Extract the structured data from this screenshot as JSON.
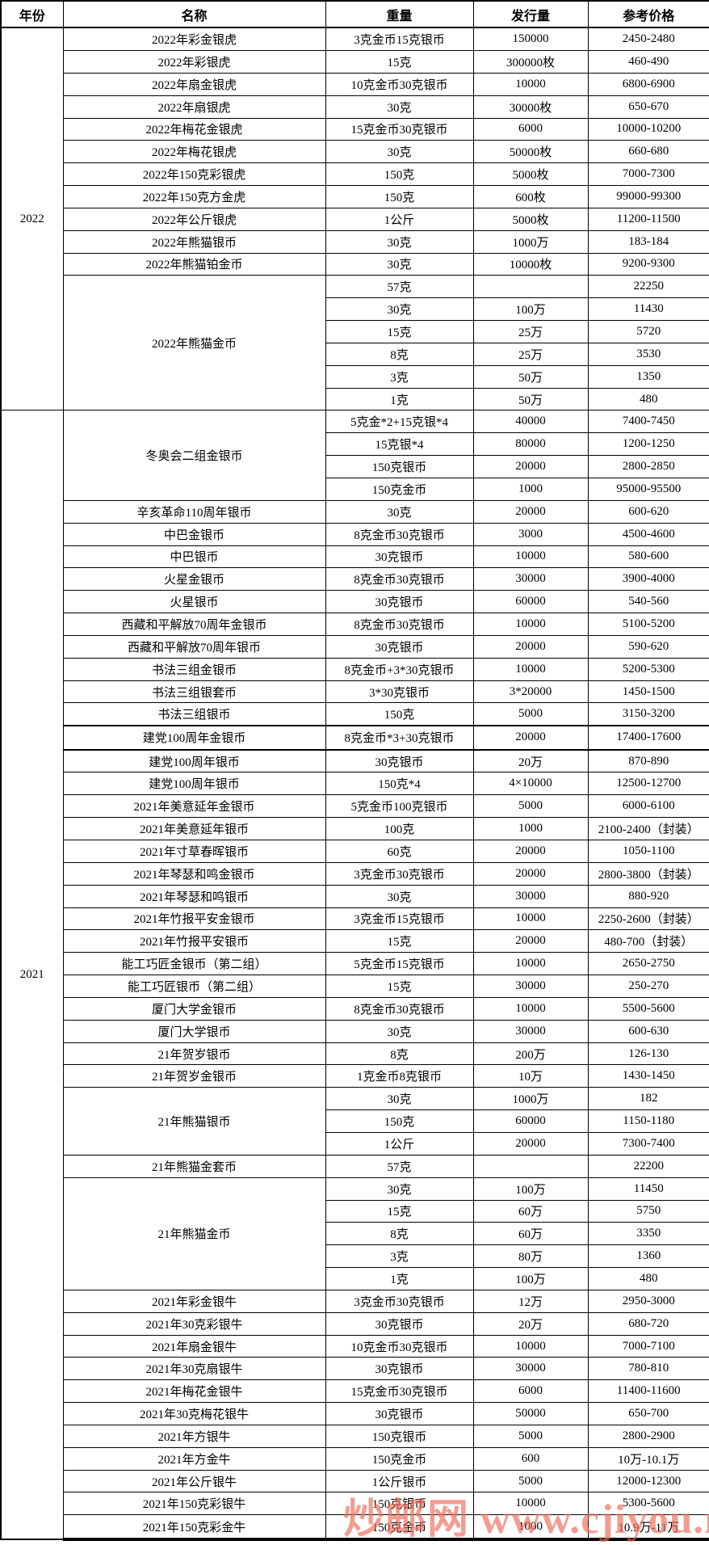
{
  "table": {
    "columns": [
      "年份",
      "名称",
      "重量",
      "发行量",
      "参考价格"
    ],
    "sections": [
      {
        "year": "2022",
        "groups": [
          {
            "name": "2022年彩金银虎",
            "rows": [
              {
                "weight": "3克金币15克银币",
                "issue": "150000",
                "price": "2450-2480"
              }
            ]
          },
          {
            "name": "2022年彩银虎",
            "rows": [
              {
                "weight": "15克",
                "issue": "300000枚",
                "price": "460-490"
              }
            ]
          },
          {
            "name": "2022年扇金银虎",
            "rows": [
              {
                "weight": "10克金币30克银币",
                "issue": "10000",
                "price": "6800-6900"
              }
            ]
          },
          {
            "name": "2022年扇银虎",
            "rows": [
              {
                "weight": "30克",
                "issue": "30000枚",
                "price": "650-670"
              }
            ]
          },
          {
            "name": "2022年梅花金银虎",
            "rows": [
              {
                "weight": "15克金币30克银币",
                "issue": "6000",
                "price": "10000-10200"
              }
            ]
          },
          {
            "name": "2022年梅花银虎",
            "rows": [
              {
                "weight": "30克",
                "issue": "50000枚",
                "price": "660-680"
              }
            ]
          },
          {
            "name": "2022年150克彩银虎",
            "rows": [
              {
                "weight": "150克",
                "issue": "5000枚",
                "price": "7000-7300"
              }
            ]
          },
          {
            "name": "2022年150克方金虎",
            "rows": [
              {
                "weight": "150克",
                "issue": "600枚",
                "price": "99000-99300"
              }
            ]
          },
          {
            "name": "2022年公斤银虎",
            "rows": [
              {
                "weight": "1公斤",
                "issue": "5000枚",
                "price": "11200-11500"
              }
            ]
          },
          {
            "name": "2022年熊猫银币",
            "rows": [
              {
                "weight": "30克",
                "issue": "1000万",
                "price": "183-184"
              }
            ]
          },
          {
            "name": "2022年熊猫铂金币",
            "rows": [
              {
                "weight": "30克",
                "issue": "10000枚",
                "price": "9200-9300"
              }
            ]
          },
          {
            "name": "2022年熊猫金币",
            "rows": [
              {
                "weight": "57克",
                "issue": "",
                "price": "22250"
              },
              {
                "weight": "30克",
                "issue": "100万",
                "price": "11430"
              },
              {
                "weight": "15克",
                "issue": "25万",
                "price": "5720"
              },
              {
                "weight": "8克",
                "issue": "25万",
                "price": "3530"
              },
              {
                "weight": "3克",
                "issue": "50万",
                "price": "1350"
              },
              {
                "weight": "1克",
                "issue": "50万",
                "price": "480"
              }
            ]
          }
        ]
      },
      {
        "year": "2021",
        "groups": [
          {
            "name": "冬奥会二组金银币",
            "rows": [
              {
                "weight": "5克金*2+15克银*4",
                "issue": "40000",
                "price": "7400-7450"
              },
              {
                "weight": "15克银*4",
                "issue": "80000",
                "price": "1200-1250"
              },
              {
                "weight": "150克银币",
                "issue": "20000",
                "price": "2800-2850"
              },
              {
                "weight": "150克金币",
                "issue": "1000",
                "price": "95000-95500"
              }
            ]
          },
          {
            "name": "辛亥革命110周年银币",
            "rows": [
              {
                "weight": "30克",
                "issue": "20000",
                "price": "600-620"
              }
            ]
          },
          {
            "name": "中巴金银币",
            "rows": [
              {
                "weight": "8克金币30克银币",
                "issue": "3000",
                "price": "4500-4600"
              }
            ]
          },
          {
            "name": "中巴银币",
            "rows": [
              {
                "weight": "30克银币",
                "issue": "10000",
                "price": "580-600"
              }
            ]
          },
          {
            "name": "火星金银币",
            "rows": [
              {
                "weight": "8克金币30克银币",
                "issue": "30000",
                "price": "3900-4000"
              }
            ]
          },
          {
            "name": "火星银币",
            "rows": [
              {
                "weight": "30克银币",
                "issue": "60000",
                "price": "540-560"
              }
            ]
          },
          {
            "name": "西藏和平解放70周年金银币",
            "rows": [
              {
                "weight": "8克金币30克银币",
                "issue": "10000",
                "price": "5100-5200"
              }
            ]
          },
          {
            "name": "西藏和平解放70周年银币",
            "rows": [
              {
                "weight": "30克银币",
                "issue": "20000",
                "price": "590-620"
              }
            ]
          },
          {
            "name": "书法三组金银币",
            "rows": [
              {
                "weight": "8克金币+3*30克银币",
                "issue": "10000",
                "price": "5200-5300"
              }
            ]
          },
          {
            "name": "书法三组银套币",
            "rows": [
              {
                "weight": "3*30克银币",
                "issue": "3*20000",
                "price": "1450-1500"
              }
            ]
          },
          {
            "name": "书法三组银币",
            "rows": [
              {
                "weight": "150克",
                "issue": "5000",
                "price": "3150-3200"
              }
            ]
          },
          {
            "name": "建党100周年金银币",
            "thick": true,
            "rows": [
              {
                "weight": "8克金币*3+30克银币",
                "issue": "20000",
                "price": "17400-17600"
              }
            ]
          },
          {
            "name": "建党100周年银币",
            "rows": [
              {
                "weight": "30克银币",
                "issue": "20万",
                "price": "870-890"
              }
            ]
          },
          {
            "name": "建党100周年银币",
            "rows": [
              {
                "weight": "150克*4",
                "issue": "4×10000",
                "price": "12500-12700"
              }
            ]
          },
          {
            "name": "2021年美意延年金银币",
            "rows": [
              {
                "weight": "5克金币100克银币",
                "issue": "5000",
                "price": "6000-6100"
              }
            ]
          },
          {
            "name": "2021年美意延年银币",
            "rows": [
              {
                "weight": "100克",
                "issue": "1000",
                "price": "2100-2400（封装）"
              }
            ]
          },
          {
            "name": "2021年寸草春晖银币",
            "rows": [
              {
                "weight": "60克",
                "issue": "20000",
                "price": "1050-1100"
              }
            ]
          },
          {
            "name": "2021年琴瑟和鸣金银币",
            "rows": [
              {
                "weight": "3克金币30克银币",
                "issue": "20000",
                "price": "2800-3800（封装）"
              }
            ]
          },
          {
            "name": "2021年琴瑟和鸣银币",
            "rows": [
              {
                "weight": "30克",
                "issue": "30000",
                "price": "880-920"
              }
            ]
          },
          {
            "name": "2021年竹报平安金银币",
            "rows": [
              {
                "weight": "3克金币15克银币",
                "issue": "10000",
                "price": "2250-2600（封装）"
              }
            ]
          },
          {
            "name": "2021年竹报平安银币",
            "rows": [
              {
                "weight": "15克",
                "issue": "20000",
                "price": "480-700（封装）"
              }
            ]
          },
          {
            "name": "能工巧匠金银币（第二组）",
            "rows": [
              {
                "weight": "5克金币15克银币",
                "issue": "10000",
                "price": "2650-2750"
              }
            ]
          },
          {
            "name": "能工巧匠银币（第二组）",
            "rows": [
              {
                "weight": "15克",
                "issue": "30000",
                "price": "250-270"
              }
            ]
          },
          {
            "name": "厦门大学金银币",
            "rows": [
              {
                "weight": "8克金币30克银币",
                "issue": "10000",
                "price": "5500-5600"
              }
            ]
          },
          {
            "name": "厦门大学银币",
            "rows": [
              {
                "weight": "30克",
                "issue": "30000",
                "price": "600-630"
              }
            ]
          },
          {
            "name": "21年贺岁银币",
            "rows": [
              {
                "weight": "8克",
                "issue": "200万",
                "price": "126-130"
              }
            ]
          },
          {
            "name": "21年贺岁金银币",
            "rows": [
              {
                "weight": "1克金币8克银币",
                "issue": "10万",
                "price": "1430-1450"
              }
            ]
          },
          {
            "name": "21年熊猫银币",
            "rows": [
              {
                "weight": "30克",
                "issue": "1000万",
                "price": "182"
              },
              {
                "weight": "150克",
                "issue": "60000",
                "price": "1150-1180"
              },
              {
                "weight": "1公斤",
                "issue": "20000",
                "price": "7300-7400"
              }
            ]
          },
          {
            "name": "21年熊猫金套币",
            "rows": [
              {
                "weight": "57克",
                "issue": "",
                "price": "22200"
              }
            ]
          },
          {
            "name": "21年熊猫金币",
            "rows": [
              {
                "weight": "30克",
                "issue": "100万",
                "price": "11450"
              },
              {
                "weight": "15克",
                "issue": "60万",
                "price": "5750"
              },
              {
                "weight": "8克",
                "issue": "60万",
                "price": "3350"
              },
              {
                "weight": "3克",
                "issue": "80万",
                "price": "1360"
              },
              {
                "weight": "1克",
                "issue": "100万",
                "price": "480"
              }
            ]
          },
          {
            "name": "2021年彩金银牛",
            "rows": [
              {
                "weight": "3克金币30克银币",
                "issue": "12万",
                "price": "2950-3000"
              }
            ]
          },
          {
            "name": "2021年30克彩银牛",
            "rows": [
              {
                "weight": "30克银币",
                "issue": "20万",
                "price": "680-720"
              }
            ]
          },
          {
            "name": "2021年扇金银牛",
            "rows": [
              {
                "weight": "10克金币30克银币",
                "issue": "10000",
                "price": "7000-7100"
              }
            ]
          },
          {
            "name": "2021年30克扇银牛",
            "rows": [
              {
                "weight": "30克银币",
                "issue": "30000",
                "price": "780-810"
              }
            ]
          },
          {
            "name": "2021年梅花金银牛",
            "rows": [
              {
                "weight": "15克金币30克银币",
                "issue": "6000",
                "price": "11400-11600"
              }
            ]
          },
          {
            "name": "2021年30克梅花银牛",
            "rows": [
              {
                "weight": "30克银币",
                "issue": "50000",
                "price": "650-700"
              }
            ]
          },
          {
            "name": "2021年方银牛",
            "rows": [
              {
                "weight": "150克银币",
                "issue": "5000",
                "price": "2800-2900"
              }
            ]
          },
          {
            "name": "2021年方金牛",
            "rows": [
              {
                "weight": "150克金币",
                "issue": "600",
                "price": "10万-10.1万"
              }
            ]
          },
          {
            "name": "2021年公斤银牛",
            "rows": [
              {
                "weight": "1公斤银币",
                "issue": "5000",
                "price": "12000-12300"
              }
            ]
          },
          {
            "name": "2021年150克彩银牛",
            "rows": [
              {
                "weight": "150克银币",
                "issue": "10000",
                "price": "5300-5600"
              }
            ]
          },
          {
            "name": "2021年150克彩金牛",
            "rows": [
              {
                "weight": "150克金币",
                "issue": "1000",
                "price": "10.9万-11万"
              }
            ]
          }
        ]
      }
    ]
  },
  "watermark": {
    "text": "炒邮网 www.cjiyou.net",
    "color": "#ee6e5c"
  }
}
